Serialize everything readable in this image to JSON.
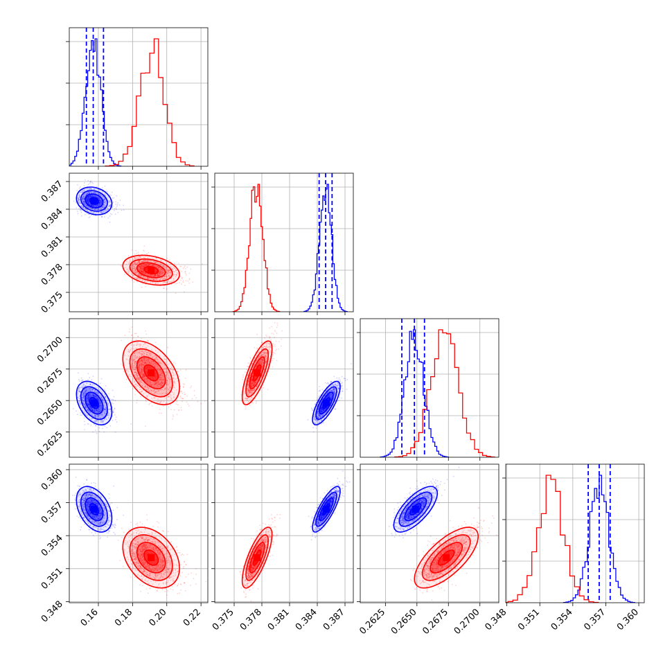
{
  "chart_data": {
    "type": "corner",
    "grid": true,
    "parameters": [
      {
        "index": 0,
        "range": [
          0.143,
          0.224
        ],
        "ticks": [
          0.16,
          0.18,
          0.2,
          0.22
        ],
        "tick_labels": [
          "0.16",
          "0.18",
          "0.20",
          "0.22"
        ]
      },
      {
        "index": 1,
        "range": [
          0.3729,
          0.3879
        ],
        "ticks": [
          0.375,
          0.378,
          0.381,
          0.384,
          0.387
        ],
        "tick_labels": [
          "0.375",
          "0.378",
          "0.381",
          "0.384",
          "0.387"
        ]
      },
      {
        "index": 2,
        "range": [
          0.2605,
          0.2715
        ],
        "ticks": [
          0.2625,
          0.265,
          0.2675,
          0.27
        ],
        "tick_labels": [
          "0.2625",
          "0.2650",
          "0.2675",
          "0.2700"
        ]
      },
      {
        "index": 3,
        "range": [
          0.3479,
          0.3605
        ],
        "ticks": [
          0.348,
          0.351,
          0.354,
          0.357,
          0.36
        ],
        "tick_labels": [
          "0.348",
          "0.351",
          "0.354",
          "0.357",
          "0.360"
        ]
      }
    ],
    "series": [
      {
        "color": "#0000ff",
        "mean": [
          0.157,
          0.3849,
          0.2648,
          0.3564
        ],
        "sd": [
          0.0045,
          0.00065,
          0.00075,
          0.0009
        ],
        "corr": [
          [
            1,
            -0.2,
            -0.4,
            -0.4
          ],
          [
            -0.2,
            1,
            0.75,
            0.8
          ],
          [
            -0.4,
            0.75,
            1,
            0.7
          ],
          [
            -0.4,
            0.8,
            0.7,
            1
          ]
        ],
        "quantiles": [
          [
            0.153,
            0.157,
            0.163
          ],
          [
            0.3842,
            0.3849,
            0.3856
          ],
          [
            0.2638,
            0.2648,
            0.2656
          ],
          [
            0.3554,
            0.3564,
            0.3574
          ]
        ],
        "hist_bins": [
          30,
          30,
          35,
          30
        ]
      },
      {
        "color": "#ff0000",
        "mean": [
          0.19,
          0.3774,
          0.2672,
          0.352
        ],
        "sd": [
          0.0072,
          0.0007,
          0.0011,
          0.0012
        ],
        "corr": [
          [
            1,
            -0.3,
            -0.45,
            -0.35
          ],
          [
            -0.3,
            1,
            0.75,
            0.75
          ],
          [
            -0.45,
            0.75,
            1,
            0.7
          ],
          [
            -0.35,
            0.75,
            0.7,
            1
          ]
        ],
        "quantiles": null,
        "hist_bins": [
          20,
          30,
          25,
          20
        ]
      }
    ],
    "contour_levels_sigma": [
      0.5,
      1.0,
      1.5,
      2.0
    ]
  }
}
